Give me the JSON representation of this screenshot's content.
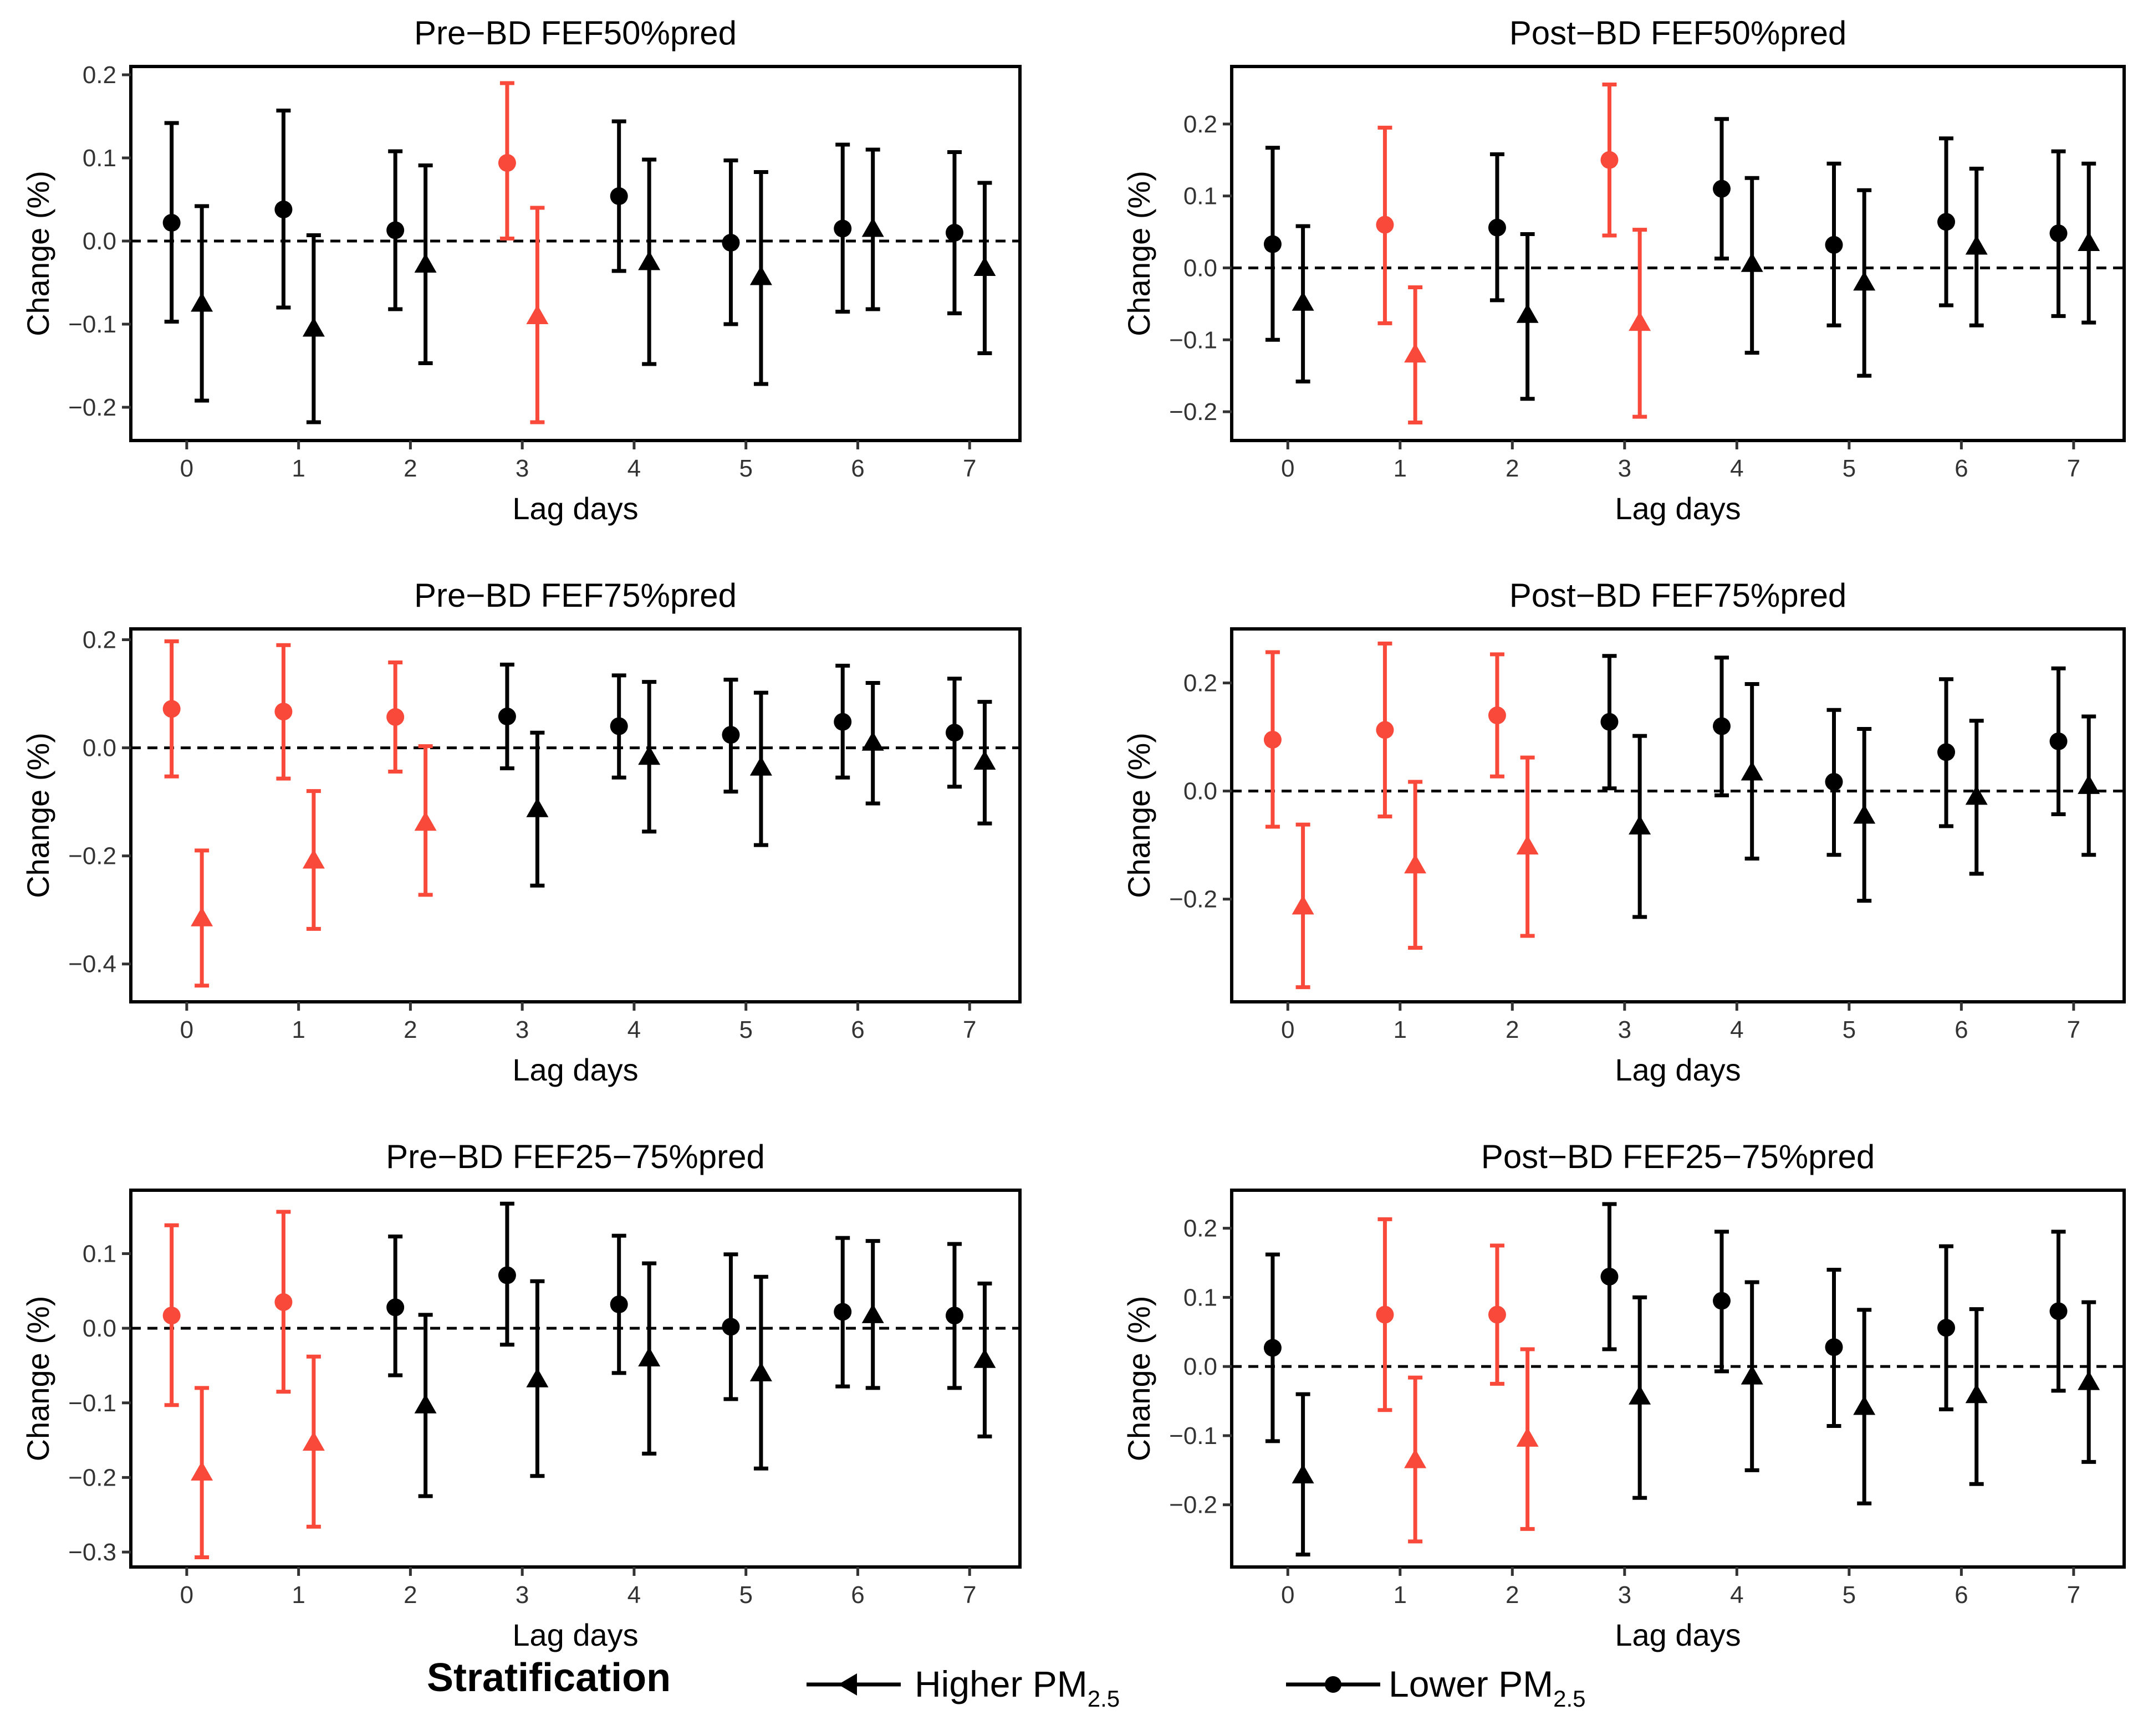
{
  "colors": {
    "significant": "#F8493A",
    "normal": "#000000",
    "zero_line": "#000000"
  },
  "legend": {
    "title": "Stratification",
    "higher_label": "Higher PM",
    "higher_sub": "2.5",
    "lower_label": "Lower PM",
    "lower_sub": "2.5",
    "higher_marker": "triangle-marker-icon",
    "lower_marker": "circle-marker-icon"
  },
  "chart_data": [
    {
      "type": "scatter",
      "title": "Pre−BD FEF50%pred",
      "xlabel": "Lag days",
      "ylabel": "Change (%)",
      "ylim": [
        -0.24,
        0.21
      ],
      "yticks": [
        -0.2,
        -0.1,
        0.0,
        0.1,
        0.2
      ],
      "ytick_labels": [
        "−0.2",
        "−0.1",
        "0.0",
        "0.1",
        "0.2"
      ],
      "categories": [
        "0",
        "1",
        "2",
        "3",
        "4",
        "5",
        "6",
        "7"
      ],
      "series": [
        {
          "name": "Lower PM2.5",
          "marker": "circle",
          "values": [
            0.022,
            0.038,
            0.013,
            0.094,
            0.054,
            -0.002,
            0.015,
            0.01
          ],
          "lower": [
            -0.097,
            -0.08,
            -0.082,
            0.003,
            -0.036,
            -0.1,
            -0.085,
            -0.087
          ],
          "upper": [
            0.142,
            0.157,
            0.108,
            0.19,
            0.144,
            0.097,
            0.116,
            0.107
          ],
          "significant": [
            false,
            false,
            false,
            true,
            false,
            false,
            false,
            false
          ]
        },
        {
          "name": "Higher PM2.5",
          "marker": "triangle",
          "values": [
            -0.075,
            -0.105,
            -0.028,
            -0.09,
            -0.025,
            -0.043,
            0.015,
            -0.032
          ],
          "lower": [
            -0.192,
            -0.218,
            -0.147,
            -0.218,
            -0.148,
            -0.172,
            -0.082,
            -0.135
          ],
          "upper": [
            0.042,
            0.007,
            0.091,
            0.04,
            0.098,
            0.083,
            0.11,
            0.07
          ],
          "significant": [
            false,
            false,
            false,
            true,
            false,
            false,
            false,
            false
          ]
        }
      ]
    },
    {
      "type": "scatter",
      "title": "Post−BD FEF50%pred",
      "xlabel": "Lag days",
      "ylabel": "Change (%)",
      "ylim": [
        -0.24,
        0.28
      ],
      "yticks": [
        -0.2,
        -0.1,
        0.0,
        0.1,
        0.2
      ],
      "ytick_labels": [
        "−0.2",
        "−0.1",
        "0.0",
        "0.1",
        "0.2"
      ],
      "categories": [
        "0",
        "1",
        "2",
        "3",
        "4",
        "5",
        "6",
        "7"
      ],
      "series": [
        {
          "name": "Lower PM2.5",
          "marker": "circle",
          "values": [
            0.033,
            0.06,
            0.056,
            0.15,
            0.11,
            0.032,
            0.064,
            0.048
          ],
          "lower": [
            -0.1,
            -0.077,
            -0.045,
            0.045,
            0.013,
            -0.08,
            -0.052,
            -0.067
          ],
          "upper": [
            0.167,
            0.195,
            0.158,
            0.255,
            0.207,
            0.145,
            0.18,
            0.162
          ],
          "significant": [
            false,
            true,
            false,
            true,
            false,
            false,
            false,
            false
          ]
        },
        {
          "name": "Higher PM2.5",
          "marker": "triangle",
          "values": [
            -0.048,
            -0.12,
            -0.065,
            -0.076,
            0.006,
            -0.02,
            0.03,
            0.035
          ],
          "lower": [
            -0.158,
            -0.215,
            -0.182,
            -0.207,
            -0.118,
            -0.15,
            -0.08,
            -0.076
          ],
          "upper": [
            0.058,
            -0.027,
            0.047,
            0.053,
            0.125,
            0.108,
            0.138,
            0.145
          ],
          "significant": [
            false,
            true,
            false,
            true,
            false,
            false,
            false,
            false
          ]
        }
      ]
    },
    {
      "type": "scatter",
      "title": "Pre−BD FEF75%pred",
      "xlabel": "Lag days",
      "ylabel": "Change (%)",
      "ylim": [
        -0.47,
        0.22
      ],
      "yticks": [
        -0.4,
        -0.2,
        0.0,
        0.2
      ],
      "ytick_labels": [
        "−0.4",
        "−0.2",
        "0.0",
        "0.2"
      ],
      "categories": [
        "0",
        "1",
        "2",
        "3",
        "4",
        "5",
        "6",
        "7"
      ],
      "series": [
        {
          "name": "Lower PM2.5",
          "marker": "circle",
          "values": [
            0.072,
            0.067,
            0.057,
            0.058,
            0.04,
            0.024,
            0.048,
            0.028
          ],
          "lower": [
            -0.053,
            -0.057,
            -0.044,
            -0.038,
            -0.055,
            -0.081,
            -0.055,
            -0.072
          ],
          "upper": [
            0.197,
            0.19,
            0.158,
            0.154,
            0.134,
            0.126,
            0.152,
            0.128
          ],
          "significant": [
            true,
            true,
            true,
            false,
            false,
            false,
            false,
            false
          ]
        },
        {
          "name": "Higher PM2.5",
          "marker": "triangle",
          "values": [
            -0.315,
            -0.208,
            -0.138,
            -0.113,
            -0.016,
            -0.036,
            0.01,
            -0.025
          ],
          "lower": [
            -0.44,
            -0.335,
            -0.272,
            -0.255,
            -0.155,
            -0.18,
            -0.103,
            -0.14
          ],
          "upper": [
            -0.19,
            -0.08,
            0.003,
            0.028,
            0.122,
            0.102,
            0.12,
            0.085
          ],
          "significant": [
            true,
            true,
            true,
            false,
            false,
            false,
            false,
            false
          ]
        }
      ]
    },
    {
      "type": "scatter",
      "title": "Post−BD FEF75%pred",
      "xlabel": "Lag days",
      "ylabel": "Change (%)",
      "ylim": [
        -0.39,
        0.3
      ],
      "yticks": [
        -0.2,
        0.0,
        0.2
      ],
      "ytick_labels": [
        "−0.2",
        "0.0",
        "0.2"
      ],
      "categories": [
        "0",
        "1",
        "2",
        "3",
        "4",
        "5",
        "6",
        "7"
      ],
      "series": [
        {
          "name": "Lower PM2.5",
          "marker": "circle",
          "values": [
            0.095,
            0.113,
            0.14,
            0.128,
            0.12,
            0.017,
            0.072,
            0.092
          ],
          "lower": [
            -0.066,
            -0.047,
            0.027,
            0.005,
            -0.008,
            -0.118,
            -0.065,
            -0.043
          ],
          "upper": [
            0.257,
            0.273,
            0.253,
            0.25,
            0.247,
            0.15,
            0.207,
            0.227
          ],
          "significant": [
            true,
            true,
            true,
            false,
            false,
            false,
            false,
            false
          ]
        },
        {
          "name": "Higher PM2.5",
          "marker": "triangle",
          "values": [
            -0.213,
            -0.137,
            -0.102,
            -0.065,
            0.035,
            -0.045,
            -0.01,
            0.01
          ],
          "lower": [
            -0.363,
            -0.29,
            -0.268,
            -0.233,
            -0.125,
            -0.203,
            -0.153,
            -0.118
          ],
          "upper": [
            -0.062,
            0.017,
            0.062,
            0.102,
            0.198,
            0.115,
            0.13,
            0.138
          ],
          "significant": [
            true,
            true,
            true,
            false,
            false,
            false,
            false,
            false
          ]
        }
      ]
    },
    {
      "type": "scatter",
      "title": "Pre−BD FEF25−75%pred",
      "xlabel": "Lag days",
      "ylabel": "Change (%)",
      "ylim": [
        -0.32,
        0.185
      ],
      "yticks": [
        -0.3,
        -0.2,
        -0.1,
        0.0,
        0.1
      ],
      "ytick_labels": [
        "−0.3",
        "−0.2",
        "−0.1",
        "0.0",
        "0.1"
      ],
      "categories": [
        "0",
        "1",
        "2",
        "3",
        "4",
        "5",
        "6",
        "7"
      ],
      "series": [
        {
          "name": "Lower PM2.5",
          "marker": "circle",
          "values": [
            0.017,
            0.035,
            0.028,
            0.071,
            0.032,
            0.002,
            0.022,
            0.017
          ],
          "lower": [
            -0.103,
            -0.085,
            -0.063,
            -0.022,
            -0.06,
            -0.095,
            -0.078,
            -0.08
          ],
          "upper": [
            0.138,
            0.156,
            0.123,
            0.167,
            0.124,
            0.099,
            0.121,
            0.113
          ],
          "significant": [
            true,
            true,
            false,
            false,
            false,
            false,
            false,
            false
          ]
        },
        {
          "name": "Higher PM2.5",
          "marker": "triangle",
          "values": [
            -0.193,
            -0.153,
            -0.103,
            -0.068,
            -0.04,
            -0.06,
            0.018,
            -0.042
          ],
          "lower": [
            -0.307,
            -0.266,
            -0.225,
            -0.198,
            -0.168,
            -0.188,
            -0.08,
            -0.145
          ],
          "upper": [
            -0.08,
            -0.038,
            0.018,
            0.063,
            0.087,
            0.069,
            0.117,
            0.06
          ],
          "significant": [
            true,
            true,
            false,
            false,
            false,
            false,
            false,
            false
          ]
        }
      ]
    },
    {
      "type": "scatter",
      "title": "Post−BD FEF25−75%pred",
      "xlabel": "Lag days",
      "ylabel": "Change (%)",
      "ylim": [
        -0.29,
        0.255
      ],
      "yticks": [
        -0.2,
        -0.1,
        0.0,
        0.1,
        0.2
      ],
      "ytick_labels": [
        "−0.2",
        "−0.1",
        "0.0",
        "0.1",
        "0.2"
      ],
      "categories": [
        "0",
        "1",
        "2",
        "3",
        "4",
        "5",
        "6",
        "7"
      ],
      "series": [
        {
          "name": "Lower PM2.5",
          "marker": "circle",
          "values": [
            0.027,
            0.075,
            0.075,
            0.13,
            0.095,
            0.028,
            0.056,
            0.08
          ],
          "lower": [
            -0.108,
            -0.063,
            -0.025,
            0.025,
            -0.007,
            -0.086,
            -0.062,
            -0.035
          ],
          "upper": [
            0.162,
            0.213,
            0.175,
            0.235,
            0.195,
            0.14,
            0.174,
            0.195
          ],
          "significant": [
            false,
            true,
            true,
            false,
            false,
            false,
            false,
            false
          ]
        },
        {
          "name": "Higher PM2.5",
          "marker": "triangle",
          "values": [
            -0.157,
            -0.135,
            -0.104,
            -0.043,
            -0.014,
            -0.058,
            -0.041,
            -0.022
          ],
          "lower": [
            -0.272,
            -0.253,
            -0.235,
            -0.19,
            -0.15,
            -0.198,
            -0.17,
            -0.138
          ],
          "upper": [
            -0.04,
            -0.016,
            0.025,
            0.1,
            0.122,
            0.082,
            0.083,
            0.093
          ],
          "significant": [
            false,
            true,
            true,
            false,
            false,
            false,
            false,
            false
          ]
        }
      ]
    }
  ]
}
